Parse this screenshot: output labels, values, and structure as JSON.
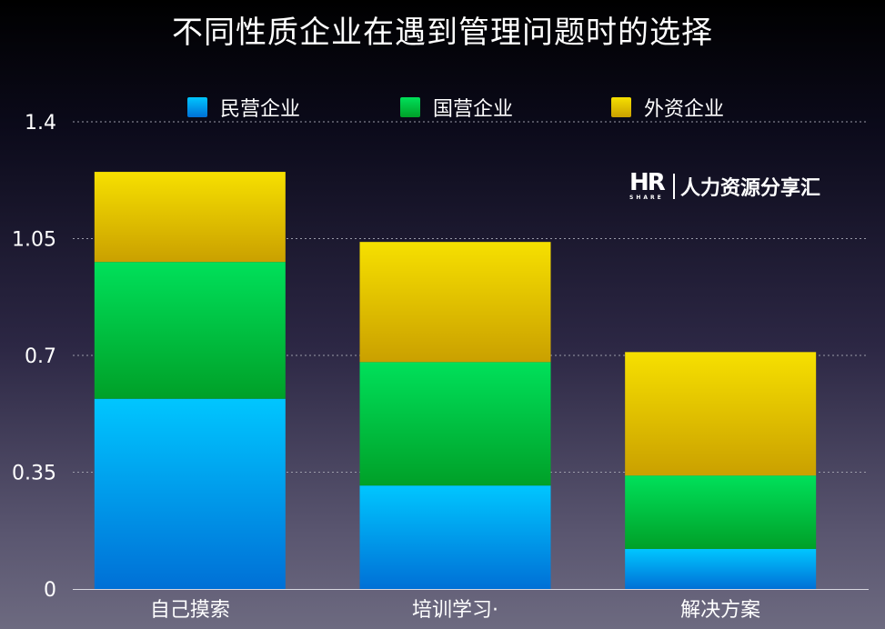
{
  "title": "不同性质企业在遇到管理问题时的选择",
  "watermark": {
    "logo_text": "HR",
    "logo_subtext": "SHARE",
    "text": "人力资源分享汇"
  },
  "colors": {
    "series1_top": "#00c6ff",
    "series1_bottom": "#0070d6",
    "series2_top": "#00e05a",
    "series2_bottom": "#00a028",
    "series3_top": "#f6e000",
    "series3_bottom": "#caa000",
    "grid": "#9a9aa8",
    "axis_text": "#ffffff"
  },
  "chart_data": {
    "type": "bar",
    "stacked": true,
    "title": "不同性质企业在遇到管理问题时的选择",
    "categories": [
      "自己摸索",
      "培训学习·",
      "解决方案"
    ],
    "series": [
      {
        "name": "民营企业",
        "values": [
          0.57,
          0.31,
          0.12
        ]
      },
      {
        "name": "国营企业",
        "values": [
          0.41,
          0.37,
          0.22
        ]
      },
      {
        "name": "外资企业",
        "values": [
          0.27,
          0.36,
          0.37
        ]
      }
    ],
    "ylim": [
      0,
      1.4
    ],
    "yticks": [
      "0",
      "0.35",
      "0.7",
      "1.05",
      "1.4"
    ],
    "ytick_values": [
      0,
      0.35,
      0.7,
      1.05,
      1.4
    ],
    "xlabel": "",
    "ylabel": "",
    "grid": true,
    "legend_position": "top"
  }
}
